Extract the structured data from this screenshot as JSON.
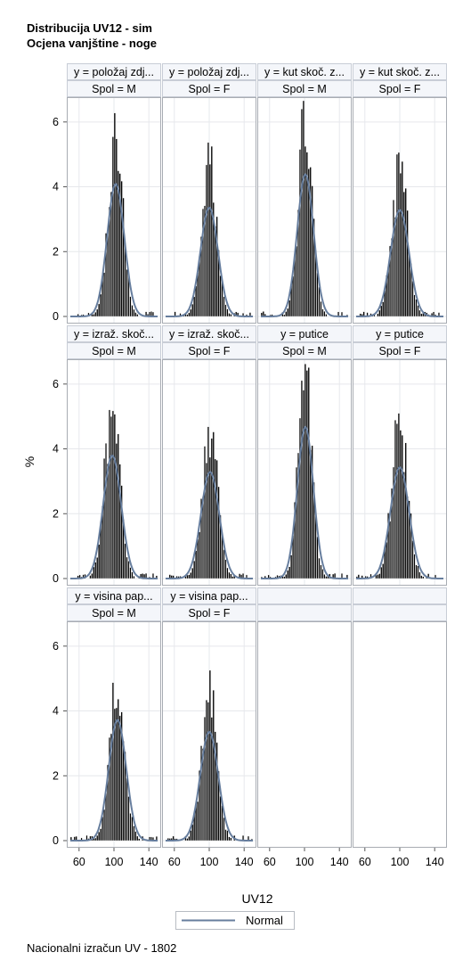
{
  "title_lines": [
    "Distribucija UV12 - sim",
    "Ocjena vanjštine - noge"
  ],
  "footnote": "Nacionalni izračun UV - 1802",
  "chart_data": {
    "type": "histogram-panel",
    "xlabel": "UV12",
    "ylabel": "%",
    "x_ticks": [
      60,
      100,
      140
    ],
    "xlim": [
      50,
      150
    ],
    "y_ticks": [
      0,
      2,
      4,
      6
    ],
    "ylim": [
      0,
      6.6
    ],
    "legend": {
      "position": "bottom",
      "entries": [
        {
          "label": "Normal",
          "color": "#677e9e"
        }
      ]
    },
    "bar_color": "#000000",
    "curve_color": "#677e9e",
    "rows": [
      [
        {
          "header_y": "y = položaj zdj...",
          "header_sex": "Spol = M",
          "mean": 102,
          "sd": 9.8,
          "peak": 5.6
        },
        {
          "header_y": "y = položaj zdj...",
          "header_sex": "Spol = F",
          "mean": 100,
          "sd": 10,
          "peak": 4.6
        },
        {
          "header_y": "y = kut skoč. z...",
          "header_sex": "Spol = M",
          "mean": 101,
          "sd": 9.4,
          "peak": 6.0
        },
        {
          "header_y": "y = kut skoč. z...",
          "header_sex": "Spol = F",
          "mean": 100,
          "sd": 10.5,
          "peak": 4.5
        }
      ],
      [
        {
          "header_y": "y = izraž. skoč...",
          "header_sex": "Spol = M",
          "mean": 98,
          "sd": 10.3,
          "peak": 5.2
        },
        {
          "header_y": "y = izraž. skoč...",
          "header_sex": "Spol = F",
          "mean": 101,
          "sd": 10.5,
          "peak": 4.5
        },
        {
          "header_y": "y = putice",
          "header_sex": "Spol = M",
          "mean": 101,
          "sd": 9.2,
          "peak": 6.4
        },
        {
          "header_y": "y = putice",
          "header_sex": "Spol = F",
          "mean": 100,
          "sd": 10.7,
          "peak": 4.7
        }
      ],
      [
        {
          "header_y": "y = visina pap...",
          "header_sex": "Spol = M",
          "mean": 104,
          "sd": 10,
          "peak": 5.1
        },
        {
          "header_y": "y = visina pap...",
          "header_sex": "Spol = F",
          "mean": 100,
          "sd": 10.3,
          "peak": 4.6
        },
        null,
        null
      ]
    ]
  }
}
